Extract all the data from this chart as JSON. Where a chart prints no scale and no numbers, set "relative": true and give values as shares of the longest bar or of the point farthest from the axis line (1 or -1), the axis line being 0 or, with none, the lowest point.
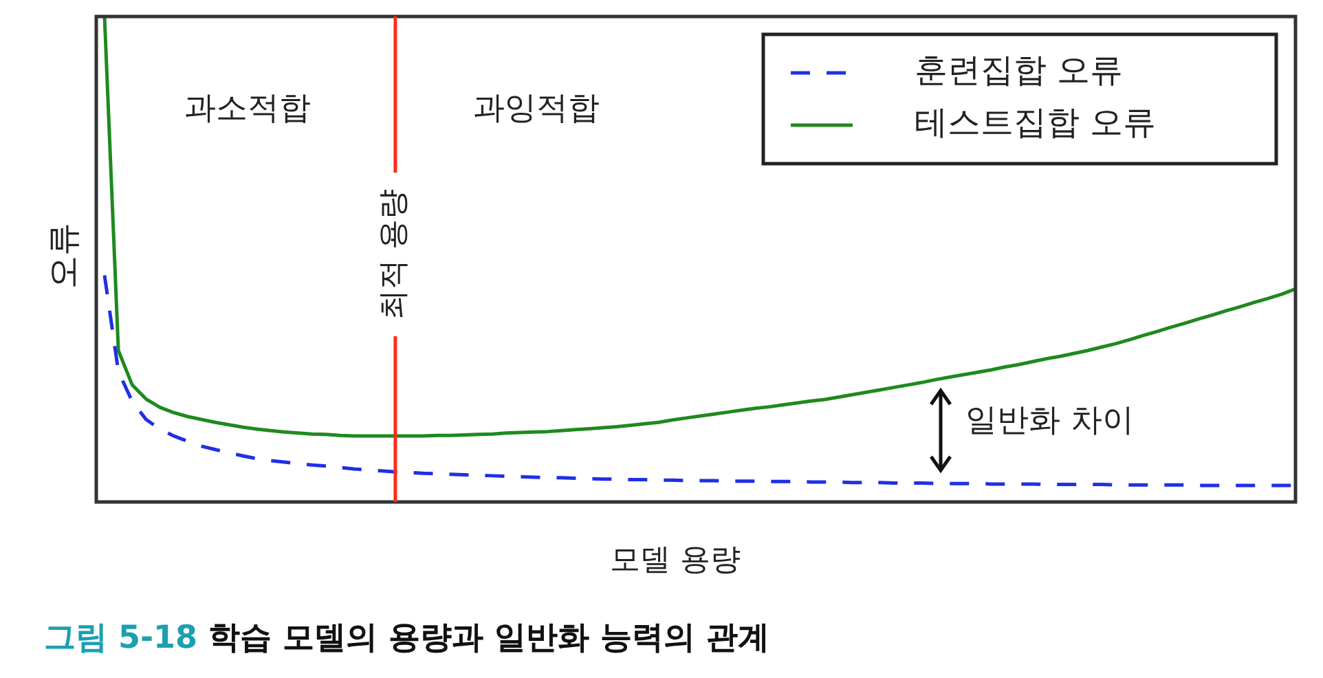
{
  "chart_data": {
    "type": "line",
    "title": "그림 5-18 학습 모델의 용량과 일반화 능력의 관계",
    "xlabel": "모델 용량",
    "ylabel": "오류",
    "relative": true,
    "marker": "none",
    "legend": "top right",
    "categories": [
      null,
      null,
      null,
      null,
      null,
      null,
      null,
      null,
      null,
      null,
      null,
      null,
      null,
      null,
      null,
      null,
      null,
      null,
      null,
      null,
      null,
      null,
      null,
      null,
      null,
      null,
      null,
      null,
      null,
      null,
      null,
      null,
      null,
      null,
      null,
      null,
      null,
      null,
      null,
      null,
      null,
      null,
      null,
      null,
      null,
      null,
      null,
      null,
      null,
      null,
      null,
      null,
      null,
      null,
      null,
      null,
      null,
      null,
      null,
      null,
      null,
      null,
      null,
      null,
      null,
      null,
      null,
      null,
      null,
      null,
      null,
      null,
      null,
      null,
      null,
      null,
      null,
      null,
      null,
      null,
      null,
      null,
      null,
      null,
      null,
      null,
      null
    ],
    "series": [
      {
        "name": "훈련집합 오류",
        "color": "#1f2fe6",
        "line_style": "dashed",
        "values": [
          0.467,
          0.269,
          0.207,
          0.17,
          0.15,
          0.136,
          0.125,
          0.115,
          0.108,
          0.101,
          0.095,
          0.089,
          0.085,
          0.082,
          0.079,
          0.076,
          0.074,
          0.071,
          0.068,
          0.066,
          0.064,
          0.062,
          0.061,
          0.059,
          0.058,
          0.057,
          0.056,
          0.055,
          0.054,
          0.053,
          0.052,
          0.051,
          0.05,
          0.05,
          0.049,
          0.048,
          0.047,
          0.047,
          0.046,
          0.046,
          0.045,
          0.045,
          0.044,
          0.044,
          0.044,
          0.043,
          0.043,
          0.043,
          0.042,
          0.042,
          0.042,
          0.041,
          0.041,
          0.041,
          0.04,
          0.04,
          0.04,
          0.039,
          0.039,
          0.039,
          0.038,
          0.038,
          0.038,
          0.038,
          0.037,
          0.037,
          0.037,
          0.037,
          0.036,
          0.036,
          0.036,
          0.036,
          0.036,
          0.035,
          0.035,
          0.035,
          0.035,
          0.035,
          0.035,
          0.034,
          0.034,
          0.034,
          0.034,
          0.034,
          0.034,
          0.034,
          0.034
        ]
      },
      {
        "name": "테스트집합 오류",
        "color": "#1e8a1e",
        "line_style": "solid",
        "values": [
          1,
          0.312,
          0.241,
          0.212,
          0.195,
          0.184,
          0.176,
          0.17,
          0.164,
          0.159,
          0.154,
          0.15,
          0.147,
          0.144,
          0.142,
          0.14,
          0.139,
          0.137,
          0.136,
          0.136,
          0.136,
          0.136,
          0.136,
          0.136,
          0.137,
          0.137,
          0.138,
          0.139,
          0.14,
          0.142,
          0.143,
          0.144,
          0.145,
          0.147,
          0.149,
          0.151,
          0.153,
          0.155,
          0.158,
          0.161,
          0.164,
          0.169,
          0.173,
          0.177,
          0.181,
          0.185,
          0.189,
          0.193,
          0.196,
          0.2,
          0.204,
          0.208,
          0.211,
          0.216,
          0.221,
          0.226,
          0.231,
          0.236,
          0.241,
          0.246,
          0.252,
          0.257,
          0.262,
          0.267,
          0.272,
          0.278,
          0.283,
          0.289,
          0.295,
          0.3,
          0.306,
          0.312,
          0.319,
          0.326,
          0.334,
          0.343,
          0.351,
          0.36,
          0.368,
          0.377,
          0.385,
          0.394,
          0.402,
          0.411,
          0.419,
          0.428,
          0.439
        ]
      }
    ],
    "annotations": [
      "과소적합",
      "과잉적합",
      "일반화 차이",
      "최적 용량"
    ]
  }
}
